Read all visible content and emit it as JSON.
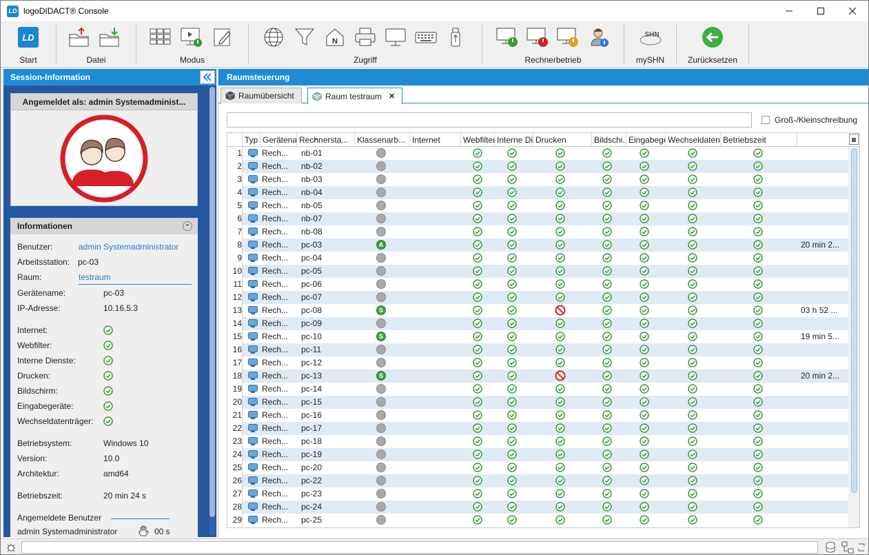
{
  "window": {
    "title": "logoDIDACT® Console",
    "app_logo": "LD"
  },
  "toolbar": {
    "groups": [
      "Start",
      "Datei",
      "Modus",
      "Zugriff",
      "Rechnerbetrieb",
      "mySHN",
      "Zurücksetzen"
    ]
  },
  "left": {
    "header": "Session-Information",
    "logged_in": "Angemeldet als: admin Systemadminist...",
    "info_header": "Informationen",
    "benutzer_label": "Benutzer:",
    "benutzer_value": "admin Systemadministrator",
    "arbeitsstation_label": "Arbeitsstation:",
    "arbeitsstation_value": "pc-03",
    "raum_label": "Raum:",
    "raum_value": "testraum",
    "geraetename_label": "Gerätename:",
    "geraetename_value": "pc-03",
    "ip_label": "IP-Adresse:",
    "ip_value": "10.16.5.3",
    "flags": [
      "Internet:",
      "Webfilter:",
      "Interne Dienste:",
      "Drucken:",
      "Bildschirm:",
      "Eingabegeräte:",
      "Wechseldatenträger:"
    ],
    "os_label": "Betriebsystem:",
    "os_value": "Windows 10",
    "version_label": "Version:",
    "version_value": "10.0",
    "arch_label": "Architektur:",
    "arch_value": "amd64",
    "uptime_label": "Betriebszeit:",
    "uptime_value": "20 min 24 s",
    "users_label": "Angemeldete Benutzer",
    "user_name": "admin Systemadministrator",
    "user_time": "00 s"
  },
  "right": {
    "header": "Raumsteuerung",
    "tabs": [
      "Raumübersicht",
      "Raum testraum"
    ],
    "case_label": "Groß-/Kleinschreibung",
    "columns": [
      "Typ",
      "Gerätena...",
      "Rechnersta...",
      "Klassenarb...",
      "Internet",
      "Webfilter",
      "Interne Dien...",
      "Drucken",
      "Bildschi...",
      "Eingabeger...",
      "Wechseldatentr...",
      "Betriebszeit"
    ],
    "rows": [
      {
        "n": "1",
        "typ": "Rech...",
        "name": "nb-01",
        "stat": "",
        "blocked": false,
        "uptime": ""
      },
      {
        "n": "2",
        "typ": "Rech...",
        "name": "nb-02",
        "stat": "",
        "blocked": false,
        "uptime": ""
      },
      {
        "n": "3",
        "typ": "Rech...",
        "name": "nb-03",
        "stat": "",
        "blocked": false,
        "uptime": ""
      },
      {
        "n": "4",
        "typ": "Rech...",
        "name": "nb-04",
        "stat": "",
        "blocked": false,
        "uptime": ""
      },
      {
        "n": "5",
        "typ": "Rech...",
        "name": "nb-05",
        "stat": "",
        "blocked": false,
        "uptime": ""
      },
      {
        "n": "6",
        "typ": "Rech...",
        "name": "nb-07",
        "stat": "",
        "blocked": false,
        "uptime": ""
      },
      {
        "n": "7",
        "typ": "Rech...",
        "name": "nb-08",
        "stat": "",
        "blocked": false,
        "uptime": ""
      },
      {
        "n": "8",
        "typ": "Rech...",
        "name": "pc-03",
        "stat": "A",
        "blocked": false,
        "uptime": "20 min 2..."
      },
      {
        "n": "9",
        "typ": "Rech...",
        "name": "pc-04",
        "stat": "",
        "blocked": false,
        "uptime": ""
      },
      {
        "n": "10",
        "typ": "Rech...",
        "name": "pc-05",
        "stat": "",
        "blocked": false,
        "uptime": ""
      },
      {
        "n": "11",
        "typ": "Rech...",
        "name": "pc-06",
        "stat": "",
        "blocked": false,
        "uptime": ""
      },
      {
        "n": "12",
        "typ": "Rech...",
        "name": "pc-07",
        "stat": "",
        "blocked": false,
        "uptime": ""
      },
      {
        "n": "13",
        "typ": "Rech...",
        "name": "pc-08",
        "stat": "S",
        "blocked": true,
        "uptime": "03 h 52 ..."
      },
      {
        "n": "14",
        "typ": "Rech...",
        "name": "pc-09",
        "stat": "",
        "blocked": false,
        "uptime": ""
      },
      {
        "n": "15",
        "typ": "Rech...",
        "name": "pc-10",
        "stat": "S",
        "blocked": false,
        "uptime": "19 min 5..."
      },
      {
        "n": "16",
        "typ": "Rech...",
        "name": "pc-11",
        "stat": "",
        "blocked": false,
        "uptime": ""
      },
      {
        "n": "17",
        "typ": "Rech...",
        "name": "pc-12",
        "stat": "",
        "blocked": false,
        "uptime": ""
      },
      {
        "n": "18",
        "typ": "Rech...",
        "name": "pc-13",
        "stat": "S",
        "blocked": true,
        "uptime": "20 min 2..."
      },
      {
        "n": "19",
        "typ": "Rech...",
        "name": "pc-14",
        "stat": "",
        "blocked": false,
        "uptime": ""
      },
      {
        "n": "20",
        "typ": "Rech...",
        "name": "pc-15",
        "stat": "",
        "blocked": false,
        "uptime": ""
      },
      {
        "n": "21",
        "typ": "Rech...",
        "name": "pc-16",
        "stat": "",
        "blocked": false,
        "uptime": ""
      },
      {
        "n": "22",
        "typ": "Rech...",
        "name": "pc-17",
        "stat": "",
        "blocked": false,
        "uptime": ""
      },
      {
        "n": "23",
        "typ": "Rech...",
        "name": "pc-18",
        "stat": "",
        "blocked": false,
        "uptime": ""
      },
      {
        "n": "24",
        "typ": "Rech...",
        "name": "pc-19",
        "stat": "",
        "blocked": false,
        "uptime": ""
      },
      {
        "n": "25",
        "typ": "Rech...",
        "name": "pc-20",
        "stat": "",
        "blocked": false,
        "uptime": ""
      },
      {
        "n": "26",
        "typ": "Rech...",
        "name": "pc-22",
        "stat": "",
        "blocked": false,
        "uptime": ""
      },
      {
        "n": "27",
        "typ": "Rech...",
        "name": "pc-23",
        "stat": "",
        "blocked": false,
        "uptime": ""
      },
      {
        "n": "28",
        "typ": "Rech...",
        "name": "pc-24",
        "stat": "",
        "blocked": false,
        "uptime": ""
      },
      {
        "n": "29",
        "typ": "Rech...",
        "name": "pc-25",
        "stat": "",
        "blocked": false,
        "uptime": ""
      }
    ]
  },
  "colors": {
    "accent": "#1f8ad6",
    "ok": "#3a9a3a",
    "blocked": "#d0202a",
    "sidebar": "#2558a0"
  }
}
